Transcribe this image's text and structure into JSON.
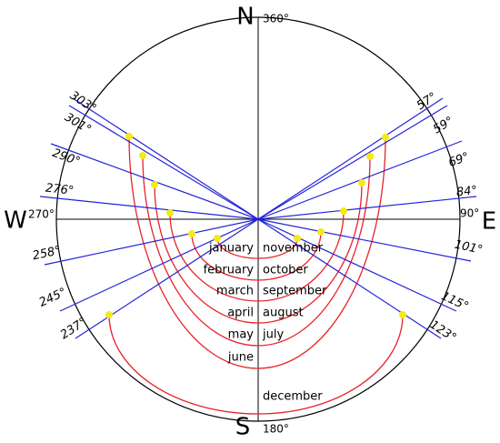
{
  "compass": {
    "north": "N",
    "north_degree": "360°",
    "south": "S",
    "south_degree": "180°",
    "west": "W",
    "west_degree": "270°",
    "east": "E",
    "east_degree": "90°"
  },
  "azimuths": {
    "west": [
      "303°",
      "301°",
      "290°",
      "276°",
      "258°",
      "245°",
      "237°"
    ],
    "east": [
      "57°",
      "59°",
      "69°",
      "84°",
      "101°",
      "115°",
      "123°"
    ]
  },
  "months": {
    "left": [
      "january",
      "february",
      "march",
      "april",
      "may",
      "june"
    ],
    "right": [
      "november",
      "october",
      "september",
      "august",
      "july",
      "december"
    ]
  }
}
